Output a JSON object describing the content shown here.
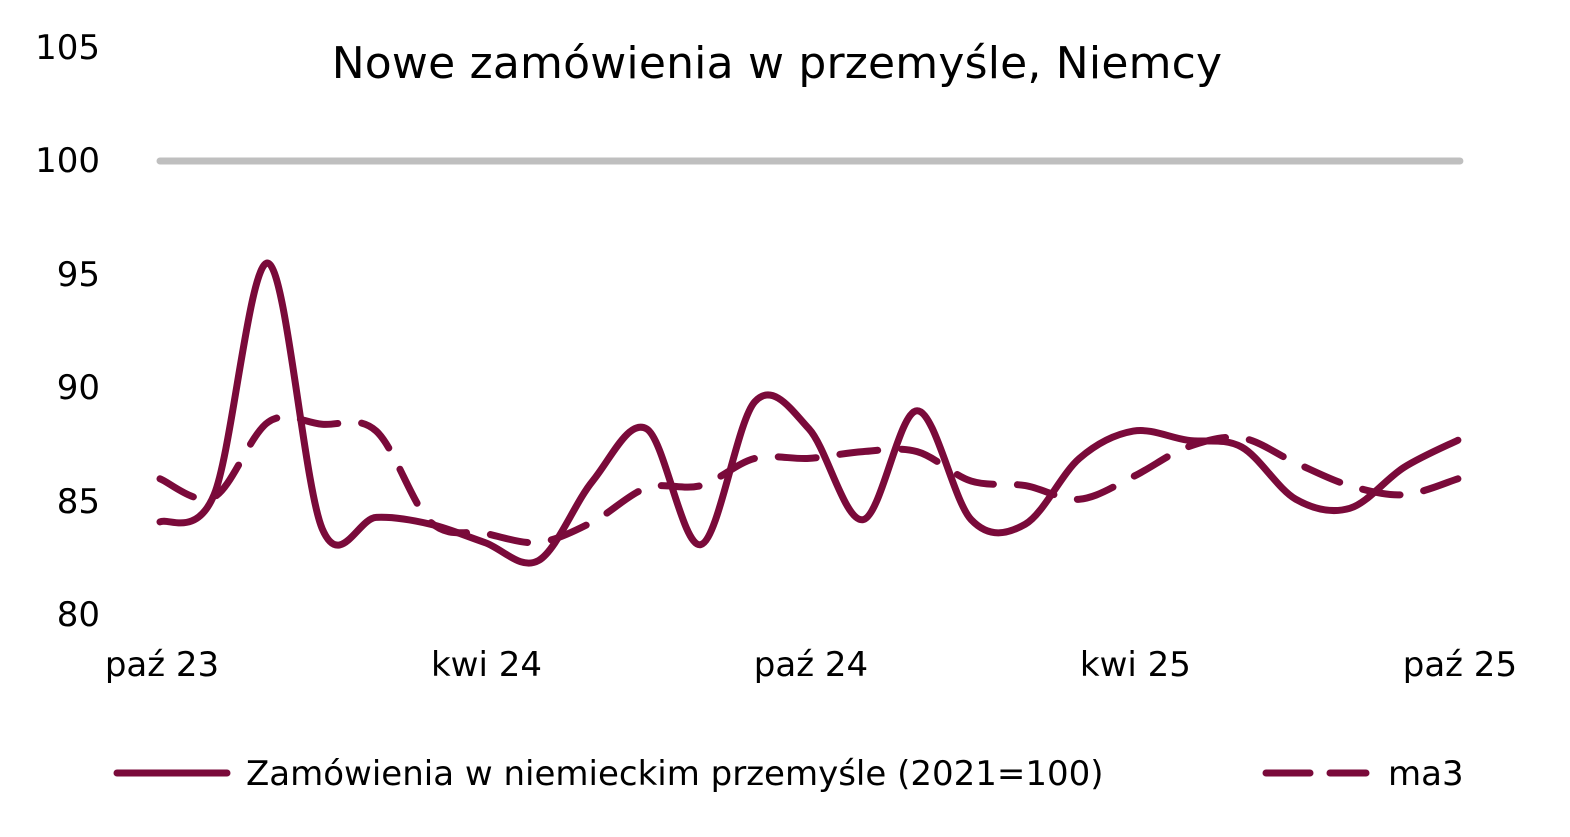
{
  "chart_data": {
    "type": "line",
    "title": "Nowe zamówienia w przemyśle, Niemcy",
    "xlabel": "",
    "ylabel": "",
    "ylim": [
      80,
      105
    ],
    "yticks": [
      80,
      85,
      90,
      95,
      100,
      105
    ],
    "ytick_labels": [
      "80",
      "85",
      "90",
      "95",
      "100",
      "105"
    ],
    "x": [
      "paź 23",
      "lis 23",
      "gru 23",
      "sty 24",
      "lut 24",
      "mar 24",
      "kwi 24",
      "maj 24",
      "cze 24",
      "lip 24",
      "sie 24",
      "wrz 24",
      "paź 24",
      "lis 24",
      "gru 24",
      "sty 25",
      "lut 25",
      "mar 25",
      "kwi 25",
      "maj 25",
      "cze 25",
      "lip 25",
      "sie 25",
      "wrz 25",
      "paź 25"
    ],
    "xtick_labels": [
      "paź 23",
      "kwi 24",
      "paź 24",
      "kwi 25",
      "paź 25"
    ],
    "xtick_indices": [
      0,
      6,
      12,
      18,
      24
    ],
    "grid": false,
    "legend_position": "bottom",
    "reference_line": {
      "value": 100,
      "color": "#bfbfbf"
    },
    "series": [
      {
        "name": "Zamówienia w niemieckim przemyśle (2021=100)",
        "style": "solid",
        "color": "#7a0a3a",
        "values": [
          84.1,
          85.3,
          95.5,
          83.8,
          84.3,
          84.0,
          83.2,
          82.4,
          85.9,
          88.2,
          83.1,
          89.4,
          88.2,
          84.2,
          89.0,
          84.2,
          84.0,
          86.9,
          88.1,
          87.7,
          87.4,
          85.1,
          84.7,
          86.5,
          87.7
        ]
      },
      {
        "name": "ma3",
        "style": "dashed",
        "color": "#7a0a3a",
        "values": [
          86.0,
          85.2,
          88.5,
          88.4,
          88.1,
          84.1,
          83.6,
          83.2,
          84.1,
          85.6,
          85.7,
          86.9,
          86.9,
          87.2,
          87.2,
          85.9,
          85.7,
          85.1,
          86.1,
          87.4,
          87.8,
          86.7,
          85.7,
          85.3,
          86.0
        ]
      }
    ]
  },
  "legend": {
    "items": [
      {
        "label": "Zamówienia w niemieckim przemyśle (2021=100)"
      },
      {
        "label": "ma3"
      }
    ]
  }
}
